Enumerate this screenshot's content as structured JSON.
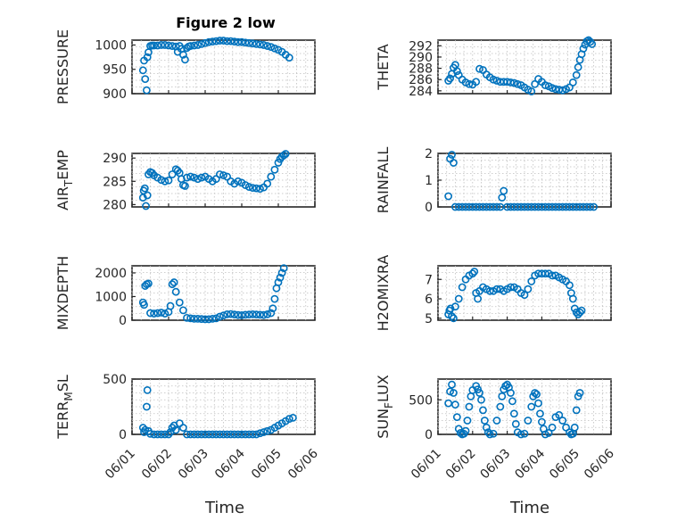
{
  "title": "Figure 2 low",
  "colors": {
    "marker": "#0072bd",
    "axis": "#262626",
    "grid": "#bfbfbf"
  },
  "xaxis": {
    "label": "Time",
    "ticks": [
      "06/01",
      "06/02",
      "06/03",
      "06/04",
      "06/05",
      "06/06"
    ],
    "range_days": [
      0,
      5
    ]
  },
  "chart_data": [
    {
      "type": "scatter",
      "title": "Figure 2 low",
      "ylabel": "PRESSURE",
      "ylim": [
        900,
        1010
      ],
      "yticks": [
        "900",
        "950",
        "1000"
      ],
      "ytick_values": [
        900,
        950,
        1000
      ],
      "x": [
        0.3,
        0.33,
        0.36,
        0.4,
        0.42,
        0.45,
        0.5,
        0.55,
        0.6,
        0.7,
        0.8,
        0.9,
        1.0,
        1.1,
        1.2,
        1.25,
        1.3,
        1.35,
        1.4,
        1.45,
        1.5,
        1.55,
        1.6,
        1.7,
        1.8,
        1.9,
        2.0,
        2.1,
        2.2,
        2.3,
        2.4,
        2.5,
        2.6,
        2.7,
        2.8,
        2.9,
        3.0,
        3.1,
        3.2,
        3.3,
        3.4,
        3.5,
        3.6,
        3.7,
        3.8,
        3.9,
        4.0,
        4.1,
        4.2,
        4.3
      ],
      "y": [
        948,
        968,
        930,
        907,
        975,
        985,
        998,
        999,
        999,
        999,
        1000,
        1000,
        999,
        998,
        997,
        986,
        998,
        992,
        980,
        970,
        994,
        997,
        998,
        999,
        1000,
        1002,
        1004,
        1006,
        1007,
        1008,
        1009,
        1009,
        1008,
        1008,
        1007,
        1006,
        1006,
        1005,
        1004,
        1003,
        1002,
        1001,
        1000,
        998,
        996,
        993,
        990,
        986,
        980,
        974
      ]
    },
    {
      "type": "scatter",
      "ylabel": "THETA",
      "ylim": [
        283.5,
        293
      ],
      "yticks": [
        "284",
        "286",
        "288",
        "290",
        "292"
      ],
      "ytick_values": [
        284,
        286,
        288,
        290,
        292
      ],
      "x": [
        0.3,
        0.35,
        0.4,
        0.45,
        0.5,
        0.55,
        0.6,
        0.7,
        0.8,
        0.9,
        1.0,
        1.1,
        1.2,
        1.3,
        1.4,
        1.5,
        1.6,
        1.7,
        1.8,
        1.9,
        2.0,
        2.1,
        2.2,
        2.3,
        2.4,
        2.5,
        2.6,
        2.7,
        2.8,
        2.9,
        3.0,
        3.1,
        3.2,
        3.3,
        3.4,
        3.5,
        3.6,
        3.7,
        3.8,
        3.9,
        4.0,
        4.05,
        4.1,
        4.15,
        4.2,
        4.25,
        4.3,
        4.35,
        4.4,
        4.45
      ],
      "y": [
        285.8,
        286.2,
        287.0,
        288.1,
        288.6,
        287.5,
        286.8,
        286.0,
        285.5,
        285.2,
        285.1,
        285.6,
        287.9,
        287.7,
        286.9,
        286.4,
        286.0,
        285.8,
        285.6,
        285.6,
        285.6,
        285.5,
        285.4,
        285.2,
        285.0,
        284.6,
        284.2,
        283.9,
        285.2,
        286.1,
        285.6,
        285.0,
        284.8,
        284.5,
        284.3,
        284.2,
        284.1,
        284.3,
        284.6,
        285.5,
        286.8,
        288.2,
        289.5,
        290.5,
        291.5,
        292.2,
        292.8,
        293.0,
        292.7,
        292.3
      ]
    },
    {
      "type": "scatter",
      "ylabel": "AIR_TEMP",
      "ylim": [
        279.5,
        291
      ],
      "yticks": [
        "280",
        "285",
        "290"
      ],
      "ytick_values": [
        280,
        285,
        290
      ],
      "x": [
        0.3,
        0.32,
        0.35,
        0.38,
        0.42,
        0.45,
        0.5,
        0.55,
        0.6,
        0.7,
        0.8,
        0.9,
        1.0,
        1.1,
        1.2,
        1.25,
        1.3,
        1.35,
        1.4,
        1.45,
        1.5,
        1.6,
        1.7,
        1.8,
        1.9,
        2.0,
        2.1,
        2.2,
        2.3,
        2.4,
        2.5,
        2.6,
        2.7,
        2.8,
        2.9,
        3.0,
        3.1,
        3.2,
        3.3,
        3.4,
        3.5,
        3.6,
        3.7,
        3.8,
        3.9,
        4.0,
        4.05,
        4.1,
        4.15,
        4.2
      ],
      "y": [
        281.5,
        283.0,
        283.5,
        279.7,
        282.0,
        286.5,
        287.0,
        286.8,
        286.3,
        285.8,
        285.3,
        285.0,
        285.2,
        286.5,
        287.6,
        287.3,
        286.8,
        285.5,
        284.2,
        284.0,
        285.8,
        286.0,
        285.8,
        285.5,
        285.8,
        286.0,
        285.5,
        285.0,
        285.5,
        286.5,
        286.3,
        286.0,
        285.0,
        284.5,
        285.0,
        284.7,
        284.2,
        283.8,
        283.6,
        283.5,
        283.4,
        283.7,
        284.5,
        286.0,
        287.5,
        289.0,
        289.8,
        290.3,
        290.6,
        290.9
      ]
    },
    {
      "type": "scatter",
      "ylabel": "RAINFALL",
      "ylim": [
        0,
        2
      ],
      "yticks": [
        "0",
        "1",
        "2"
      ],
      "ytick_values": [
        0,
        1,
        2
      ],
      "x": [
        0.3,
        0.35,
        0.4,
        0.45,
        0.5,
        0.6,
        0.7,
        0.8,
        0.9,
        1.0,
        1.1,
        1.2,
        1.3,
        1.4,
        1.5,
        1.6,
        1.7,
        1.8,
        1.85,
        1.9,
        2.0,
        2.1,
        2.2,
        2.3,
        2.4,
        2.5,
        2.6,
        2.7,
        2.8,
        2.9,
        3.0,
        3.1,
        3.2,
        3.3,
        3.4,
        3.5,
        3.6,
        3.7,
        3.8,
        3.9,
        4.0,
        4.1,
        4.2,
        4.3,
        4.4,
        4.5
      ],
      "y": [
        0.4,
        1.8,
        1.95,
        1.65,
        0,
        0,
        0,
        0,
        0,
        0,
        0,
        0,
        0,
        0,
        0,
        0,
        0,
        0,
        0.35,
        0.6,
        0,
        0,
        0,
        0,
        0,
        0,
        0,
        0,
        0,
        0,
        0,
        0,
        0,
        0,
        0,
        0,
        0,
        0,
        0,
        0,
        0,
        0,
        0,
        0,
        0,
        0
      ]
    },
    {
      "type": "scatter",
      "ylabel": "MIXDEPTH",
      "ylim": [
        0,
        2300
      ],
      "yticks": [
        "0",
        "1000",
        "2000"
      ],
      "ytick_values": [
        0,
        1000,
        2000
      ],
      "x": [
        0.3,
        0.33,
        0.36,
        0.4,
        0.45,
        0.5,
        0.6,
        0.7,
        0.8,
        0.9,
        1.0,
        1.05,
        1.1,
        1.15,
        1.2,
        1.3,
        1.4,
        1.5,
        1.6,
        1.7,
        1.8,
        1.9,
        2.0,
        2.1,
        2.2,
        2.3,
        2.4,
        2.5,
        2.6,
        2.7,
        2.8,
        2.9,
        3.0,
        3.1,
        3.2,
        3.3,
        3.4,
        3.5,
        3.6,
        3.7,
        3.8,
        3.85,
        3.9,
        3.95,
        4.0,
        4.05,
        4.1,
        4.15
      ],
      "y": [
        750,
        650,
        1450,
        1520,
        1550,
        300,
        280,
        300,
        320,
        280,
        350,
        600,
        1520,
        1600,
        1200,
        750,
        420,
        100,
        80,
        60,
        60,
        50,
        40,
        40,
        60,
        80,
        150,
        200,
        250,
        260,
        240,
        220,
        210,
        230,
        240,
        250,
        240,
        230,
        220,
        250,
        300,
        500,
        900,
        1350,
        1600,
        1800,
        2000,
        2200
      ]
    },
    {
      "type": "scatter",
      "ylabel": "H2OMIXRA",
      "ylim": [
        4.9,
        7.7
      ],
      "yticks": [
        "5",
        "6",
        "7"
      ],
      "ytick_values": [
        5,
        6,
        7
      ],
      "x": [
        0.3,
        0.33,
        0.36,
        0.4,
        0.45,
        0.5,
        0.6,
        0.7,
        0.8,
        0.9,
        1.0,
        1.05,
        1.1,
        1.15,
        1.2,
        1.3,
        1.4,
        1.5,
        1.6,
        1.7,
        1.8,
        1.9,
        2.0,
        2.1,
        2.2,
        2.3,
        2.4,
        2.5,
        2.6,
        2.7,
        2.8,
        2.9,
        3.0,
        3.1,
        3.2,
        3.3,
        3.4,
        3.5,
        3.6,
        3.7,
        3.8,
        3.85,
        3.9,
        3.95,
        4.0,
        4.05,
        4.1,
        4.15
      ],
      "y": [
        5.2,
        5.4,
        5.5,
        5.1,
        5.0,
        5.6,
        6.0,
        6.6,
        7.0,
        7.2,
        7.3,
        7.4,
        6.3,
        6.0,
        6.4,
        6.6,
        6.5,
        6.4,
        6.4,
        6.5,
        6.5,
        6.4,
        6.5,
        6.6,
        6.6,
        6.5,
        6.3,
        6.2,
        6.5,
        6.9,
        7.2,
        7.3,
        7.3,
        7.3,
        7.3,
        7.2,
        7.2,
        7.1,
        7.0,
        6.9,
        6.7,
        6.3,
        6.0,
        5.5,
        5.3,
        5.2,
        5.3,
        5.4
      ]
    },
    {
      "type": "scatter",
      "ylabel": "TERR_MSL",
      "ylim": [
        0,
        500
      ],
      "yticks": [
        "0",
        "500"
      ],
      "ytick_values": [
        0,
        500
      ],
      "x": [
        0.3,
        0.33,
        0.36,
        0.4,
        0.42,
        0.45,
        0.5,
        0.6,
        0.7,
        0.8,
        0.9,
        1.0,
        1.05,
        1.1,
        1.15,
        1.2,
        1.3,
        1.4,
        1.5,
        1.6,
        1.7,
        1.8,
        1.9,
        2.0,
        2.1,
        2.2,
        2.3,
        2.4,
        2.5,
        2.6,
        2.7,
        2.8,
        2.9,
        3.0,
        3.1,
        3.2,
        3.3,
        3.4,
        3.5,
        3.6,
        3.7,
        3.8,
        3.9,
        4.0,
        4.1,
        4.2,
        4.3,
        4.4
      ],
      "y": [
        60,
        20,
        40,
        250,
        400,
        30,
        5,
        0,
        0,
        0,
        0,
        0,
        20,
        60,
        80,
        40,
        100,
        60,
        0,
        0,
        0,
        0,
        0,
        0,
        0,
        0,
        0,
        0,
        0,
        0,
        0,
        0,
        0,
        0,
        0,
        0,
        0,
        0,
        10,
        20,
        30,
        40,
        60,
        80,
        100,
        120,
        140,
        150
      ]
    },
    {
      "type": "scatter",
      "ylabel": "SUN_FLUX",
      "ylim": [
        0,
        800
      ],
      "yticks": [
        "0",
        "500"
      ],
      "ytick_values": [
        0,
        500
      ],
      "x": [
        0.3,
        0.35,
        0.4,
        0.45,
        0.5,
        0.55,
        0.6,
        0.65,
        0.7,
        0.75,
        0.8,
        0.85,
        0.9,
        0.95,
        1.0,
        1.1,
        1.15,
        1.2,
        1.25,
        1.3,
        1.35,
        1.4,
        1.45,
        1.5,
        1.6,
        1.7,
        1.8,
        1.85,
        1.9,
        1.95,
        2.0,
        2.05,
        2.1,
        2.15,
        2.2,
        2.25,
        2.3,
        2.4,
        2.5,
        2.6,
        2.7,
        2.75,
        2.8,
        2.85,
        2.9,
        2.95,
        3.0,
        3.05,
        3.1,
        3.2,
        3.3,
        3.4,
        3.5,
        3.6,
        3.7,
        3.8,
        3.85,
        3.9,
        3.95,
        4.0,
        4.05,
        4.1
      ],
      "y": [
        450,
        620,
        720,
        600,
        430,
        250,
        80,
        20,
        0,
        10,
        50,
        200,
        400,
        550,
        640,
        700,
        650,
        600,
        500,
        350,
        200,
        100,
        30,
        0,
        10,
        200,
        400,
        550,
        650,
        700,
        720,
        680,
        600,
        480,
        300,
        150,
        30,
        0,
        10,
        200,
        400,
        550,
        600,
        580,
        450,
        300,
        180,
        80,
        0,
        20,
        100,
        250,
        280,
        200,
        100,
        30,
        0,
        10,
        100,
        350,
        550,
        600
      ]
    }
  ]
}
